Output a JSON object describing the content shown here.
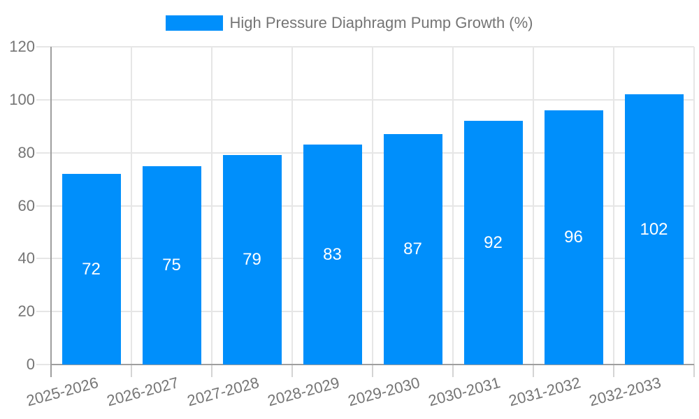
{
  "legend": {
    "label": "High Pressure Diaphragm Pump Growth (%)"
  },
  "chart_data": {
    "type": "bar",
    "title": "High Pressure Diaphragm Pump Growth (%)",
    "categories": [
      "2025-2026",
      "2026-2027",
      "2027-2028",
      "2028-2029",
      "2029-2030",
      "2030-2031",
      "2031-2032",
      "2032-2033"
    ],
    "values": [
      72,
      75,
      79,
      83,
      87,
      92,
      96,
      102
    ],
    "xlabel": "",
    "ylabel": "",
    "ylim": [
      0,
      120
    ],
    "yticks": [
      0,
      20,
      40,
      60,
      80,
      100,
      120
    ],
    "grid": true,
    "legend_position": "top-center",
    "value_label_position": "inside-middle",
    "x_tick_label_rotation_deg": -15
  },
  "colors": {
    "bar": "#008FFB",
    "grid": "#E6E6E6",
    "axis": "#9E9E9E",
    "tick": "#D4D4D4",
    "label_text": "#757575",
    "value_text": "#FFFFFF",
    "background": "#FFFFFF"
  }
}
